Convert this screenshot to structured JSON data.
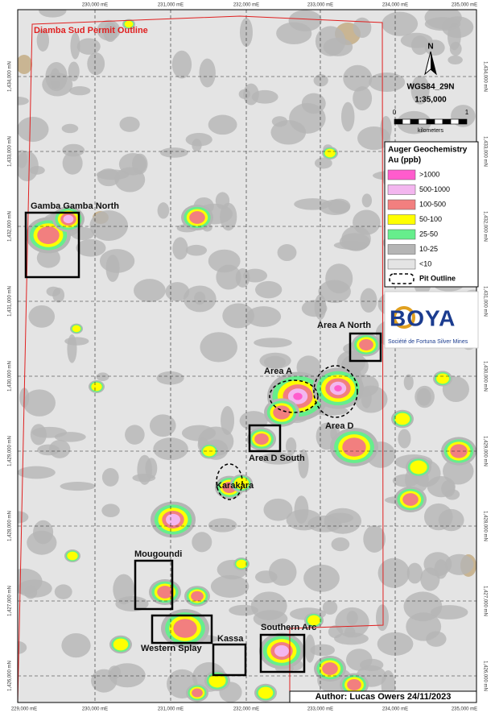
{
  "map": {
    "permit_title": "Diamba Sud Permit Outline",
    "projection": "WGS84_29N",
    "scale": "1:35,000",
    "scale_bar": {
      "start": "0",
      "end": "1",
      "unit": "kilometers"
    },
    "north": "N",
    "legend": {
      "title": "Auger Geochemistry",
      "subtitle": "Au (ppb)",
      "items": [
        {
          "label": ">1000",
          "color": "#ff5ccd"
        },
        {
          "label": "500-1000",
          "color": "#f3b6ef"
        },
        {
          "label": "100-500",
          "color": "#f27f7f"
        },
        {
          "label": "50-100",
          "color": "#ffff00"
        },
        {
          "label": "25-50",
          "color": "#66ee8c"
        },
        {
          "label": "10-25",
          "color": "#b5b5b5"
        },
        {
          "label": "<10",
          "color": "#e4e4e4"
        }
      ],
      "pit_outline": "Pit Outline"
    },
    "logo": {
      "name": "BOYA",
      "tagline": "Société de Fortuna Silver Mines"
    },
    "areas": [
      "Gamba Gamba North",
      "Area A North",
      "Area A",
      "Area D",
      "Area D South",
      "Karakara",
      "Mougoundi",
      "Southern Arc",
      "Western Splay",
      "Kassa"
    ],
    "eastings_top": [
      "230,000 mE",
      "231,000 mE",
      "232,000 mE",
      "233,000 mE",
      "234,000 mE",
      "235,000 mE"
    ],
    "eastings_bottom": [
      "229,000 mE",
      "230,000 mE",
      "231,000 mE",
      "232,000 mE",
      "233,000 mE",
      "234,000 mE",
      "235,000 mE"
    ],
    "northings": [
      "1,434,000 mN",
      "1,433,000 mN",
      "1,432,000 mN",
      "1,431,000 mN",
      "1,430,000 mN",
      "1,429,000 mN",
      "1,428,000 mN",
      "1,427,000 mN",
      "1,426,000 mN"
    ],
    "author": "Author: Lucas Owers 24/11/2023"
  }
}
